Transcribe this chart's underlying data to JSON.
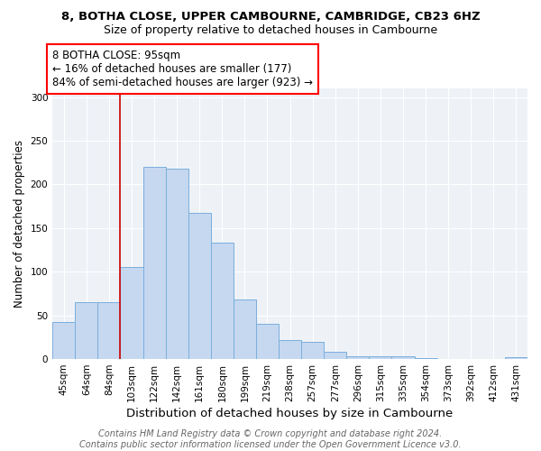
{
  "title1": "8, BOTHA CLOSE, UPPER CAMBOURNE, CAMBRIDGE, CB23 6HZ",
  "title2": "Size of property relative to detached houses in Cambourne",
  "xlabel": "Distribution of detached houses by size in Cambourne",
  "ylabel": "Number of detached properties",
  "categories": [
    "45sqm",
    "64sqm",
    "84sqm",
    "103sqm",
    "122sqm",
    "142sqm",
    "161sqm",
    "180sqm",
    "199sqm",
    "219sqm",
    "238sqm",
    "257sqm",
    "277sqm",
    "296sqm",
    "315sqm",
    "335sqm",
    "354sqm",
    "373sqm",
    "392sqm",
    "412sqm",
    "431sqm"
  ],
  "values": [
    42,
    65,
    65,
    105,
    220,
    218,
    167,
    133,
    68,
    40,
    22,
    20,
    8,
    3,
    3,
    3,
    1,
    0,
    0,
    0,
    2
  ],
  "bar_color": "#c5d8f0",
  "bar_edge_color": "#7aaedc",
  "red_line_x": 2.5,
  "annotation_line1": "8 BOTHA CLOSE: 95sqm",
  "annotation_line2": "← 16% of detached houses are smaller (177)",
  "annotation_line3": "84% of semi-detached houses are larger (923) →",
  "annotation_box_color": "white",
  "annotation_box_edge_color": "red",
  "red_line_color": "#cc0000",
  "ylim": [
    0,
    310
  ],
  "yticks": [
    0,
    50,
    100,
    150,
    200,
    250,
    300
  ],
  "footer1": "Contains HM Land Registry data © Crown copyright and database right 2024.",
  "footer2": "Contains public sector information licensed under the Open Government Licence v3.0.",
  "bg_color": "#eef2f7",
  "title1_fontsize": 9.5,
  "title2_fontsize": 9,
  "xlabel_fontsize": 9.5,
  "ylabel_fontsize": 8.5,
  "tick_fontsize": 7.5,
  "annotation_fontsize": 8.5,
  "footer_fontsize": 7
}
